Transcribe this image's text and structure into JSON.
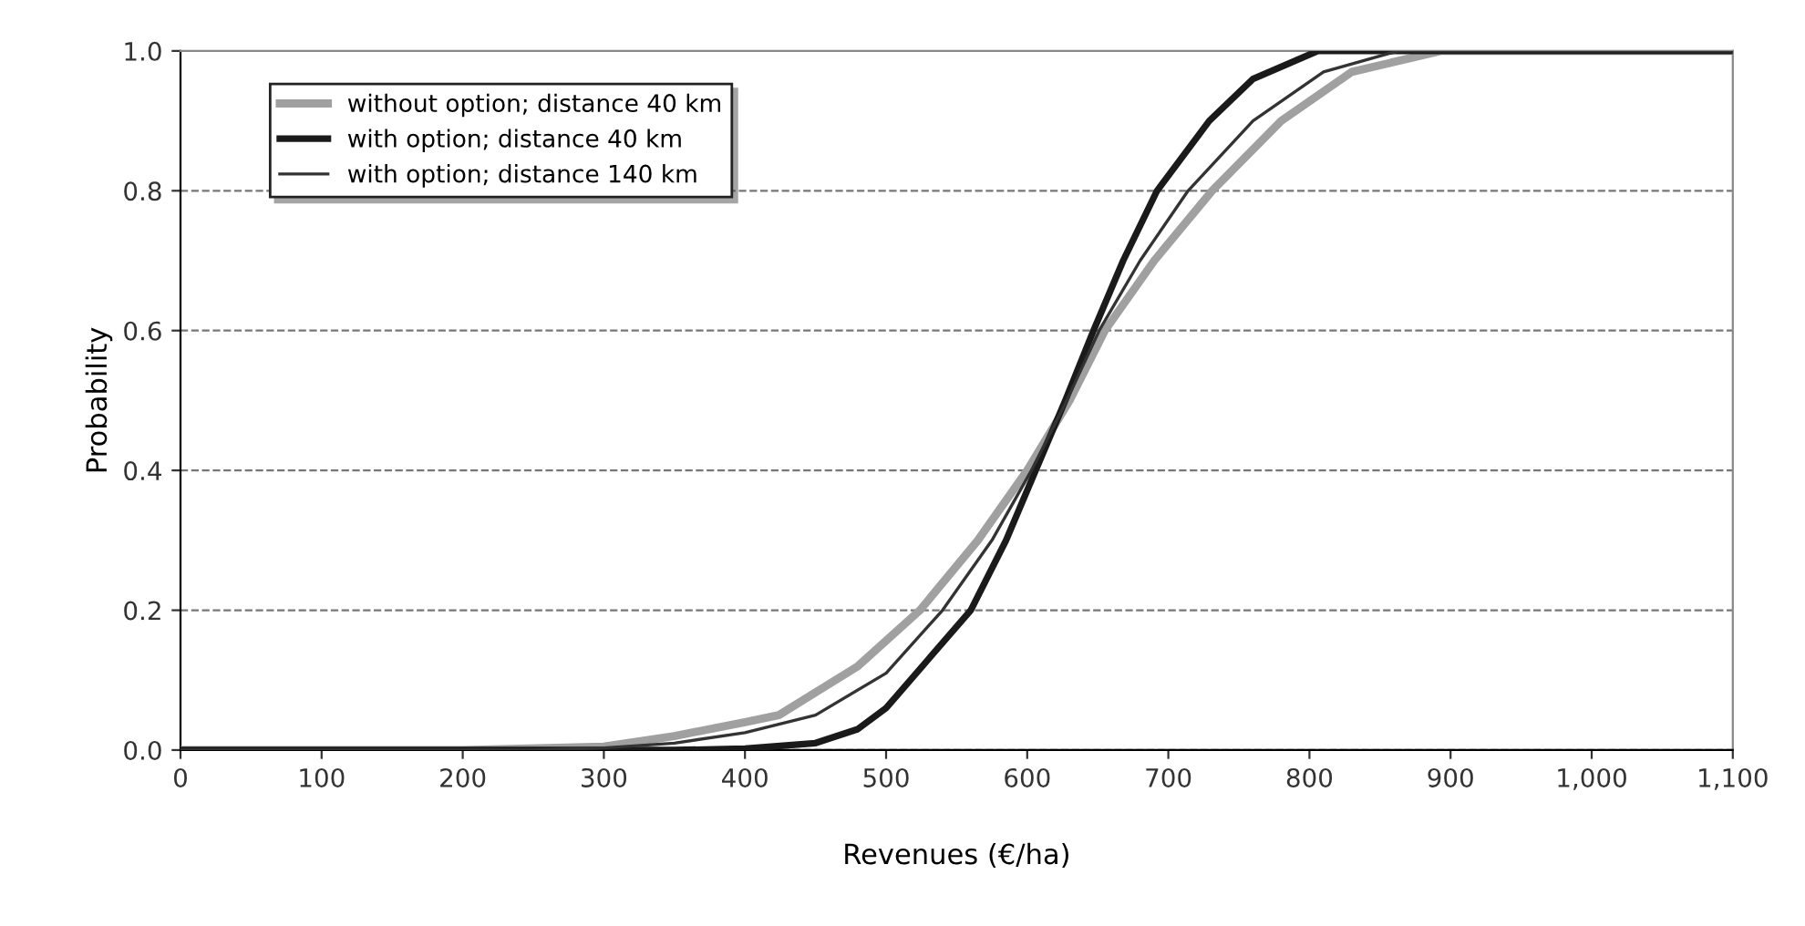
{
  "chart_data": {
    "type": "line",
    "xlabel": "Revenues (€/ha)",
    "ylabel": "Probability",
    "xlim": [
      0,
      1100
    ],
    "ylim": [
      0,
      1
    ],
    "xticks": [
      0,
      100,
      200,
      300,
      400,
      500,
      600,
      700,
      800,
      900,
      {
        "value": 1000,
        "label": "1,000"
      },
      {
        "value": 1100,
        "label": "1,100"
      }
    ],
    "yticks": [
      {
        "value": 0,
        "label": "0.0"
      },
      {
        "value": 0.2,
        "label": "0.2"
      },
      {
        "value": 0.4,
        "label": "0.4"
      },
      {
        "value": 0.6,
        "label": "0.6"
      },
      {
        "value": 0.8,
        "label": "0.8"
      },
      {
        "value": 1,
        "label": "1.0"
      }
    ],
    "grid": "y",
    "legend": "top left",
    "marker": "none",
    "series": [
      {
        "name": "without option; distance 40 km",
        "color": "#a0a0a0",
        "x": [
          0,
          200,
          300,
          350,
          400,
          424,
          480,
          524,
          565,
          600,
          630,
          655,
          690,
          731,
          780,
          830,
          893,
          1100
        ],
        "values": [
          0,
          0,
          0.005,
          0.02,
          0.04,
          0.05,
          0.12,
          0.2,
          0.3,
          0.4,
          0.5,
          0.6,
          0.7,
          0.8,
          0.9,
          0.97,
          1.0,
          1.0
        ]
      },
      {
        "name": "with option; distance 40 km",
        "color": "#1a1a1a",
        "x": [
          0,
          350,
          400,
          450,
          480,
          500,
          530,
          560,
          585,
          606,
          627,
          647,
          668,
          692,
          729,
          760,
          806,
          1100
        ],
        "values": [
          0,
          0,
          0.002,
          0.01,
          0.03,
          0.06,
          0.13,
          0.2,
          0.3,
          0.4,
          0.5,
          0.6,
          0.7,
          0.8,
          0.9,
          0.96,
          1.0,
          1.0
        ]
      },
      {
        "name": "with option; distance 140 km",
        "color": "#333333",
        "x": [
          0,
          250,
          300,
          350,
          400,
          450,
          500,
          540,
          575,
          603,
          628,
          651,
          680,
          714,
          760,
          810,
          863,
          1100
        ],
        "values": [
          0,
          0,
          0.003,
          0.01,
          0.025,
          0.05,
          0.11,
          0.2,
          0.3,
          0.4,
          0.5,
          0.6,
          0.7,
          0.8,
          0.9,
          0.97,
          1.0,
          1.0
        ]
      }
    ]
  }
}
